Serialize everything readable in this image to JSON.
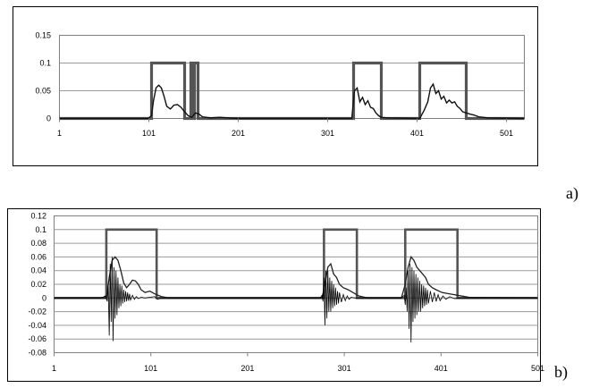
{
  "chart_data": [
    {
      "panel": "a)",
      "type": "line",
      "xlim": [
        1,
        521
      ],
      "ylim": [
        0,
        0.15
      ],
      "x_ticks": [
        "1",
        "101",
        "201",
        "301",
        "401",
        "501"
      ],
      "y_ticks": [
        "0",
        "0.05",
        "0.1",
        "0.15"
      ],
      "grid": "horizontal",
      "series": [
        {
          "color": "#555555",
          "points": [
            [
              1,
              0
            ],
            [
              104,
              0
            ],
            [
              104,
              0.1
            ],
            [
              141,
              0.1
            ],
            [
              141,
              0
            ],
            [
              148,
              0
            ],
            [
              148,
              0.1
            ],
            [
              150,
              0.1
            ],
            [
              150,
              0
            ],
            [
              152,
              0
            ],
            [
              152,
              0.1
            ],
            [
              156,
              0.1
            ],
            [
              156,
              0
            ],
            [
              330,
              0
            ],
            [
              330,
              0.1
            ],
            [
              361,
              0.1
            ],
            [
              361,
              0
            ],
            [
              404,
              0
            ],
            [
              404,
              0.1
            ],
            [
              456,
              0.1
            ],
            [
              456,
              0
            ],
            [
              521,
              0
            ]
          ]
        },
        {
          "color": "#111111",
          "points": [
            [
              1,
              0
            ],
            [
              100,
              0
            ],
            [
              104,
              0.005
            ],
            [
              106,
              0.03
            ],
            [
              109,
              0.055
            ],
            [
              112,
              0.06
            ],
            [
              115,
              0.055
            ],
            [
              118,
              0.04
            ],
            [
              121,
              0.022
            ],
            [
              125,
              0.017
            ],
            [
              129,
              0.024
            ],
            [
              133,
              0.025
            ],
            [
              137,
              0.02
            ],
            [
              141,
              0.012
            ],
            [
              145,
              0.005
            ],
            [
              149,
              0.002
            ],
            [
              153,
              0.01
            ],
            [
              157,
              0.008
            ],
            [
              161,
              0.003
            ],
            [
              170,
              0.001
            ],
            [
              180,
              0.002
            ],
            [
              200,
              0
            ],
            [
              328,
              0
            ],
            [
              331,
              0.05
            ],
            [
              334,
              0.055
            ],
            [
              337,
              0.03
            ],
            [
              340,
              0.038
            ],
            [
              343,
              0.025
            ],
            [
              346,
              0.032
            ],
            [
              349,
              0.02
            ],
            [
              352,
              0.018
            ],
            [
              355,
              0.01
            ],
            [
              358,
              0.005
            ],
            [
              361,
              0.002
            ],
            [
              368,
              0.001
            ],
            [
              404,
              0
            ],
            [
              409,
              0.015
            ],
            [
              413,
              0.03
            ],
            [
              416,
              0.055
            ],
            [
              419,
              0.062
            ],
            [
              422,
              0.045
            ],
            [
              425,
              0.05
            ],
            [
              428,
              0.035
            ],
            [
              431,
              0.04
            ],
            [
              434,
              0.028
            ],
            [
              437,
              0.033
            ],
            [
              440,
              0.028
            ],
            [
              443,
              0.03
            ],
            [
              446,
              0.022
            ],
            [
              449,
              0.018
            ],
            [
              452,
              0.012
            ],
            [
              456,
              0.01
            ],
            [
              460,
              0.008
            ],
            [
              465,
              0.006
            ],
            [
              470,
              0.003
            ],
            [
              480,
              0.001
            ],
            [
              521,
              0
            ]
          ]
        }
      ]
    },
    {
      "panel": "b)",
      "type": "line",
      "xlim": [
        1,
        501
      ],
      "ylim": [
        -0.08,
        0.12
      ],
      "x_ticks": [
        "1",
        "101",
        "201",
        "301",
        "401",
        "501"
      ],
      "y_ticks": [
        "0.12",
        "0.1",
        "0.08",
        "0.06",
        "0.04",
        "0.02",
        "0",
        "-0.02",
        "-0.04",
        "-0.06",
        "-0.08"
      ],
      "grid": "horizontal",
      "series": [
        {
          "color": "#555555",
          "points": [
            [
              1,
              0
            ],
            [
              55,
              0
            ],
            [
              55,
              0.1
            ],
            [
              107,
              0.1
            ],
            [
              107,
              0
            ],
            [
              280,
              0
            ],
            [
              280,
              0.1
            ],
            [
              314,
              0.1
            ],
            [
              314,
              0
            ],
            [
              364,
              0
            ],
            [
              364,
              0.1
            ],
            [
              418,
              0.1
            ],
            [
              418,
              0
            ],
            [
              501,
              0
            ]
          ]
        },
        {
          "color": "#222222",
          "points": [
            [
              1,
              0
            ],
            [
              55,
              0
            ],
            [
              58,
              0.03
            ],
            [
              61,
              0.055
            ],
            [
              64,
              0.06
            ],
            [
              67,
              0.055
            ],
            [
              70,
              0.04
            ],
            [
              73,
              0.022
            ],
            [
              76,
              0.015
            ],
            [
              79,
              0.02
            ],
            [
              82,
              0.026
            ],
            [
              85,
              0.025
            ],
            [
              88,
              0.02
            ],
            [
              91,
              0.012
            ],
            [
              95,
              0.008
            ],
            [
              100,
              0.01
            ],
            [
              105,
              0.006
            ],
            [
              112,
              0.002
            ],
            [
              120,
              0
            ],
            [
              278,
              0
            ],
            [
              281,
              0.02
            ],
            [
              284,
              0.045
            ],
            [
              287,
              0.05
            ],
            [
              290,
              0.035
            ],
            [
              293,
              0.03
            ],
            [
              296,
              0.02
            ],
            [
              300,
              0.015
            ],
            [
              305,
              0.012
            ],
            [
              310,
              0.008
            ],
            [
              316,
              0.003
            ],
            [
              325,
              0
            ],
            [
              360,
              0
            ],
            [
              364,
              0.02
            ],
            [
              367,
              0.045
            ],
            [
              370,
              0.06
            ],
            [
              373,
              0.055
            ],
            [
              376,
              0.045
            ],
            [
              379,
              0.04
            ],
            [
              382,
              0.035
            ],
            [
              385,
              0.03
            ],
            [
              388,
              0.02
            ],
            [
              392,
              0.015
            ],
            [
              396,
              0.012
            ],
            [
              402,
              0.008
            ],
            [
              410,
              0.006
            ],
            [
              418,
              0.004
            ],
            [
              430,
              0.001
            ],
            [
              501,
              0
            ]
          ]
        },
        {
          "color": "#000000",
          "points": [
            [
              1,
              0
            ],
            [
              50,
              0
            ],
            [
              54,
              0.003
            ],
            [
              56,
              -0.005
            ],
            [
              57,
              0.02
            ],
            [
              58,
              -0.055
            ],
            [
              59,
              0.05
            ],
            [
              60,
              -0.035
            ],
            [
              61,
              0.06
            ],
            [
              62,
              -0.063
            ],
            [
              63,
              0.045
            ],
            [
              64,
              -0.03
            ],
            [
              65,
              0.04
            ],
            [
              66,
              -0.025
            ],
            [
              67,
              0.03
            ],
            [
              68,
              -0.015
            ],
            [
              69,
              0.02
            ],
            [
              70,
              -0.012
            ],
            [
              71,
              0.018
            ],
            [
              72,
              -0.008
            ],
            [
              73,
              0.012
            ],
            [
              74,
              -0.006
            ],
            [
              75,
              0.01
            ],
            [
              76,
              -0.005
            ],
            [
              77,
              0.008
            ],
            [
              78,
              -0.004
            ],
            [
              79,
              0.006
            ],
            [
              80,
              -0.003
            ],
            [
              82,
              0.004
            ],
            [
              84,
              -0.002
            ],
            [
              86,
              0.002
            ],
            [
              88,
              -0.001
            ],
            [
              91,
              0.001
            ],
            [
              95,
              0
            ],
            [
              105,
              0.002
            ],
            [
              108,
              -0.002
            ],
            [
              112,
              0
            ],
            [
              276,
              0
            ],
            [
              278,
              0.004
            ],
            [
              279,
              -0.005
            ],
            [
              280,
              0.03
            ],
            [
              281,
              -0.04
            ],
            [
              282,
              0.04
            ],
            [
              283,
              -0.03
            ],
            [
              284,
              0.04
            ],
            [
              285,
              -0.02
            ],
            [
              286,
              0.03
            ],
            [
              287,
              -0.02
            ],
            [
              288,
              0.025
            ],
            [
              289,
              -0.015
            ],
            [
              290,
              0.02
            ],
            [
              291,
              -0.012
            ],
            [
              292,
              0.015
            ],
            [
              293,
              -0.01
            ],
            [
              294,
              0.01
            ],
            [
              295,
              -0.008
            ],
            [
              296,
              0.008
            ],
            [
              298,
              -0.006
            ],
            [
              300,
              0.005
            ],
            [
              302,
              -0.004
            ],
            [
              304,
              0.003
            ],
            [
              306,
              -0.002
            ],
            [
              308,
              0.001
            ],
            [
              312,
              0
            ],
            [
              360,
              0
            ],
            [
              363,
              0.004
            ],
            [
              364,
              -0.01
            ],
            [
              365,
              0.015
            ],
            [
              366,
              -0.02
            ],
            [
              367,
              0.04
            ],
            [
              368,
              -0.045
            ],
            [
              369,
              0.05
            ],
            [
              370,
              -0.065
            ],
            [
              371,
              0.045
            ],
            [
              372,
              -0.035
            ],
            [
              373,
              0.04
            ],
            [
              374,
              -0.03
            ],
            [
              375,
              0.035
            ],
            [
              376,
              -0.025
            ],
            [
              377,
              0.03
            ],
            [
              378,
              -0.02
            ],
            [
              379,
              0.025
            ],
            [
              380,
              -0.02
            ],
            [
              381,
              0.02
            ],
            [
              382,
              -0.015
            ],
            [
              383,
              0.018
            ],
            [
              384,
              -0.012
            ],
            [
              385,
              0.015
            ],
            [
              386,
              -0.01
            ],
            [
              387,
              0.012
            ],
            [
              388,
              -0.008
            ],
            [
              390,
              0.01
            ],
            [
              392,
              -0.006
            ],
            [
              394,
              0.008
            ],
            [
              396,
              -0.005
            ],
            [
              398,
              0.005
            ],
            [
              400,
              -0.004
            ],
            [
              403,
              0.003
            ],
            [
              406,
              -0.002
            ],
            [
              410,
              0.002
            ],
            [
              415,
              -0.001
            ],
            [
              420,
              0
            ],
            [
              501,
              0
            ]
          ]
        }
      ]
    }
  ]
}
